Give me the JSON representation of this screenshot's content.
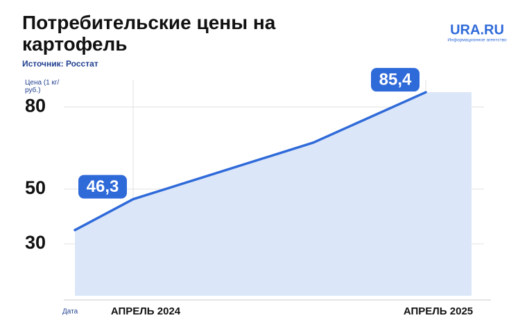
{
  "chart_data": {
    "type": "line",
    "title": "Потребительские цены на картофель",
    "source": "Источник: Росстат",
    "y_label": "Цена (1 кг/руб.)",
    "x_label": "Дата",
    "logo": "URA.RU",
    "logo_subtitle": "Информационное агентство",
    "categories": [
      null,
      "АПРЕЛЬ 2024",
      null,
      "АПРЕЛЬ 2025"
    ],
    "values": [
      35,
      46.3,
      67,
      85.4
    ],
    "value_labels": [
      null,
      "46,3",
      null,
      "85,4"
    ],
    "color": "#2f6ad9",
    "area_color": "#dbe6f8",
    "ylim": [
      11,
      90
    ],
    "yticks": [
      30,
      50,
      80
    ],
    "grid": true
  }
}
